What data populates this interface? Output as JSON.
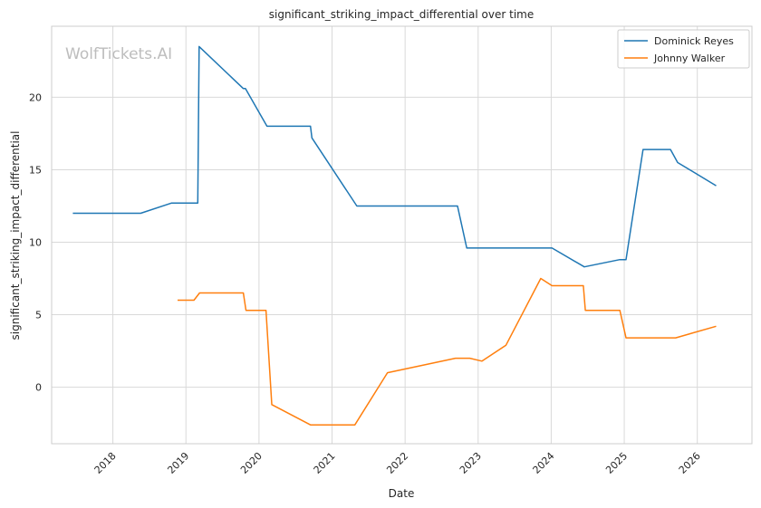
{
  "chart_data": {
    "type": "line",
    "title": "significant_striking_impact_differential over time",
    "xlabel": "Date",
    "ylabel": "significant_striking_impact_differential",
    "watermark": "WolfTickets.AI",
    "x_ticks": [
      "2018",
      "2019",
      "2020",
      "2021",
      "2022",
      "2023",
      "2024",
      "2025",
      "2026"
    ],
    "y_ticks": [
      "0",
      "5",
      "10",
      "15",
      "20"
    ],
    "xlim": [
      "2017-03-01",
      "2026-10-01"
    ],
    "ylim": [
      -3.9,
      24.9
    ],
    "grid": true,
    "legend_position": "top-right",
    "series": [
      {
        "name": "Dominick Reyes",
        "color": "#1f77b4",
        "points": [
          [
            "2017-06-15",
            12.0
          ],
          [
            "2018-05-20",
            12.0
          ],
          [
            "2018-10-20",
            12.7
          ],
          [
            "2019-03-01",
            12.7
          ],
          [
            "2019-03-08",
            23.5
          ],
          [
            "2019-10-15",
            20.6
          ],
          [
            "2019-10-25",
            20.6
          ],
          [
            "2020-02-10",
            18.0
          ],
          [
            "2020-09-15",
            18.0
          ],
          [
            "2020-09-22",
            17.2
          ],
          [
            "2021-05-05",
            12.5
          ],
          [
            "2022-09-20",
            12.5
          ],
          [
            "2022-11-05",
            9.6
          ],
          [
            "2024-01-05",
            9.6
          ],
          [
            "2024-06-15",
            8.3
          ],
          [
            "2024-12-10",
            8.8
          ],
          [
            "2025-01-10",
            8.8
          ],
          [
            "2025-04-05",
            16.4
          ],
          [
            "2025-08-20",
            16.4
          ],
          [
            "2025-09-25",
            15.5
          ],
          [
            "2026-04-05",
            13.9
          ]
        ]
      },
      {
        "name": "Johnny Walker",
        "color": "#ff7f0e",
        "points": [
          [
            "2018-11-20",
            6.0
          ],
          [
            "2019-02-10",
            6.0
          ],
          [
            "2019-03-10",
            6.5
          ],
          [
            "2019-10-15",
            6.5
          ],
          [
            "2019-10-28",
            5.3
          ],
          [
            "2020-02-05",
            5.3
          ],
          [
            "2020-03-05",
            -1.2
          ],
          [
            "2020-09-15",
            -2.6
          ],
          [
            "2021-04-25",
            -2.6
          ],
          [
            "2021-10-05",
            1.0
          ],
          [
            "2022-09-10",
            2.0
          ],
          [
            "2022-11-20",
            2.0
          ],
          [
            "2023-01-20",
            1.8
          ],
          [
            "2023-05-20",
            2.9
          ],
          [
            "2023-11-10",
            7.5
          ],
          [
            "2024-01-05",
            7.0
          ],
          [
            "2024-06-10",
            7.0
          ],
          [
            "2024-06-20",
            5.3
          ],
          [
            "2024-12-10",
            5.3
          ],
          [
            "2025-01-10",
            3.4
          ],
          [
            "2025-09-15",
            3.4
          ],
          [
            "2026-04-05",
            4.2
          ]
        ]
      }
    ]
  }
}
